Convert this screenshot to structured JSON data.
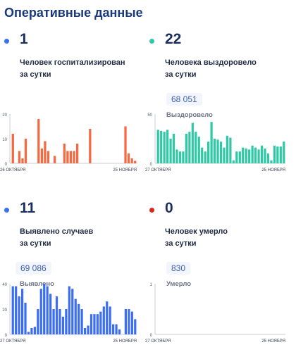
{
  "page_title": "Оперативные данные",
  "colors": {
    "orange": "#f46a42",
    "teal": "#2ec9a5",
    "blue": "#3b6ef5",
    "red": "#d9271e"
  },
  "cards": [
    {
      "value": "1",
      "desc_line1": "Человек госпитализирован",
      "desc_line2": "за сутки",
      "sub_value": "",
      "sub_label": "",
      "dot_color": "#3b6ef5"
    },
    {
      "value": "22",
      "desc_line1": "Человека выздоровело",
      "desc_line2": "за сутки",
      "sub_value": "68 051",
      "sub_label": "Выздоровело",
      "dot_color": "#2ec9a5"
    },
    {
      "value": "11",
      "desc_line1": "Выявлено случаев",
      "desc_line2": "за сутки",
      "sub_value": "69 086",
      "sub_label": "Выявлено",
      "dot_color": "#3b6ef5"
    },
    {
      "value": "0",
      "desc_line1": "Человек умерло",
      "desc_line2": "за сутки",
      "sub_value": "830",
      "sub_label": "Умерло",
      "dot_color": "#d9271e"
    }
  ],
  "chart_data": [
    {
      "type": "bar",
      "color": "#f46a42",
      "ylim": [
        0,
        20
      ],
      "yticks": [
        "20",
        "10",
        "0"
      ],
      "xlabel_start": "26 ОКТЯБРЯ",
      "xlabel_end": "25 НОЯБРЯ",
      "values": [
        12,
        0,
        5,
        2,
        10,
        0,
        0,
        0,
        18,
        6,
        9,
        5,
        0,
        3,
        0,
        0,
        8,
        5,
        5,
        5,
        8,
        0,
        0,
        0,
        14,
        0,
        0,
        0,
        0,
        0,
        0,
        0,
        0,
        0,
        0,
        15,
        4,
        2,
        1
      ]
    },
    {
      "type": "bar",
      "color": "#2ec9a5",
      "ylim": [
        0,
        50
      ],
      "yticks": [
        "50",
        "",
        "0"
      ],
      "xlabel_start": "27 ОКТЯБРЯ",
      "xlabel_end": "25 НОЯБРЯ",
      "values": [
        34,
        33,
        32,
        34,
        25,
        30,
        14,
        12,
        12,
        30,
        32,
        41,
        32,
        27,
        16,
        12,
        22,
        42,
        25,
        24,
        22,
        16,
        28,
        26,
        3,
        12,
        12,
        16,
        15,
        14,
        18,
        16,
        14,
        18,
        15,
        10,
        3,
        18,
        17,
        17,
        22
      ]
    },
    {
      "type": "bar",
      "color": "#3b6ef5",
      "ylim": [
        0,
        40
      ],
      "yticks": [
        "40",
        "20",
        "0"
      ],
      "xlabel_start": "27 ОКТЯБРЯ",
      "xlabel_end": "25 НОЯБРЯ",
      "values": [
        38,
        38,
        30,
        36,
        25,
        2,
        5,
        6,
        20,
        36,
        40,
        38,
        32,
        20,
        30,
        20,
        14,
        20,
        38,
        36,
        28,
        24,
        20,
        5,
        7,
        16,
        16,
        16,
        18,
        22,
        26,
        22,
        8,
        8,
        4,
        0,
        20,
        20,
        18,
        12
      ]
    },
    {
      "type": "bar",
      "color": "#d9271e",
      "ylim": [
        0,
        1
      ],
      "yticks": [
        "1",
        "",
        "0"
      ],
      "xlabel_start": "27 ОКТЯБРЯ",
      "xlabel_end": "25 НОЯБРЯ",
      "values": []
    }
  ]
}
